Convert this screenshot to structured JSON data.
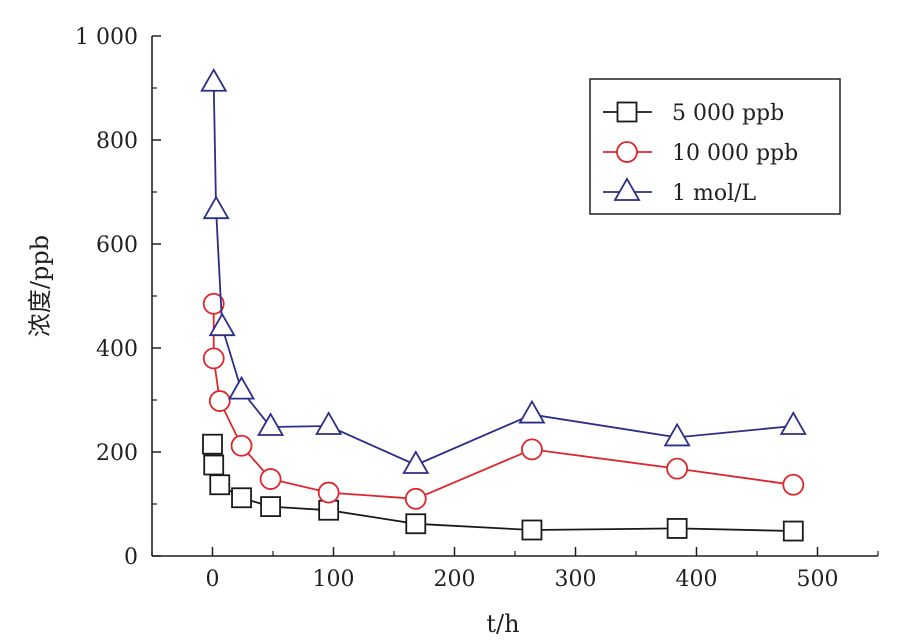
{
  "chart_data": {
    "type": "line",
    "xlabel": "t/h",
    "ylabel": "浓度/ppb",
    "xlim": [
      -50,
      550
    ],
    "ylim": [
      0,
      1000
    ],
    "xticks": [
      "0",
      "100",
      "200",
      "300",
      "400",
      "500"
    ],
    "yticks": [
      "0",
      "200",
      "400",
      "600",
      "800",
      "1 000"
    ],
    "legend_position": "top-right",
    "series": [
      {
        "name": "5 000 ppb",
        "marker": "square",
        "color": "#1a1a1a",
        "points": [
          [
            0,
            215
          ],
          [
            1,
            175
          ],
          [
            6,
            137
          ],
          [
            24,
            112
          ],
          [
            48,
            95
          ],
          [
            96,
            88
          ],
          [
            168,
            62
          ],
          [
            264,
            50
          ],
          [
            384,
            53
          ],
          [
            480,
            48
          ]
        ]
      },
      {
        "name": "10 000 ppb",
        "marker": "circle",
        "color": "#e0262b",
        "points": [
          [
            1,
            485
          ],
          [
            1,
            380
          ],
          [
            6,
            298
          ],
          [
            24,
            212
          ],
          [
            48,
            148
          ],
          [
            96,
            122
          ],
          [
            168,
            110
          ],
          [
            264,
            205
          ],
          [
            384,
            168
          ],
          [
            480,
            137
          ]
        ]
      },
      {
        "name": "1 mol/L",
        "marker": "triangle",
        "color": "#2b2f86",
        "points": [
          [
            1,
            910
          ],
          [
            3,
            665
          ],
          [
            8,
            440
          ],
          [
            24,
            318
          ],
          [
            48,
            248
          ],
          [
            96,
            250
          ],
          [
            168,
            175
          ],
          [
            264,
            272
          ],
          [
            384,
            228
          ],
          [
            480,
            250
          ]
        ]
      }
    ]
  }
}
